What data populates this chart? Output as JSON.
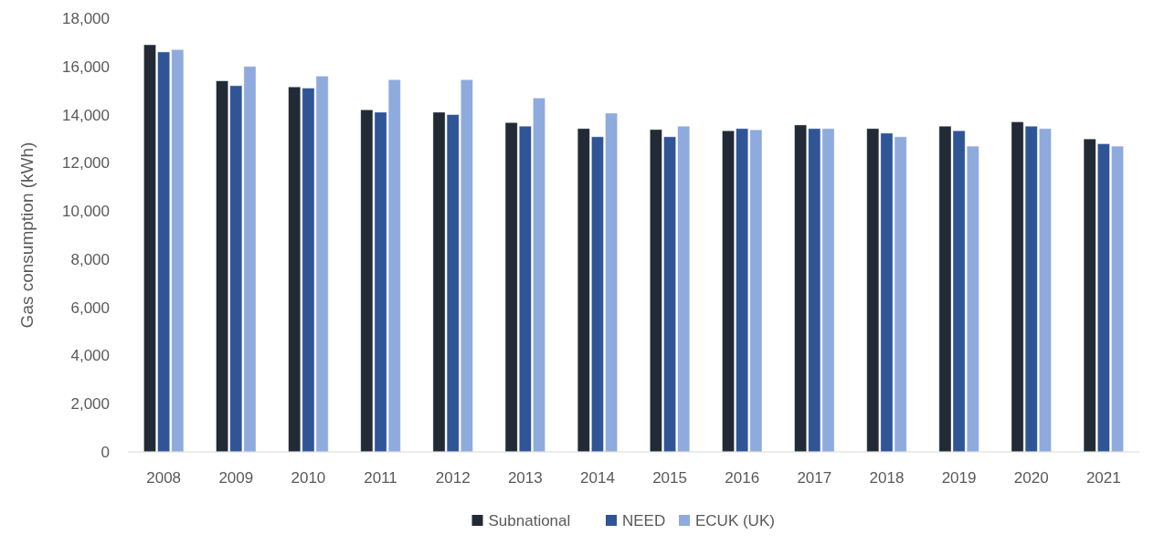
{
  "chart_data": {
    "type": "bar",
    "ylabel": "Gas consumption (kWh)",
    "categories": [
      "2008",
      "2009",
      "2010",
      "2011",
      "2012",
      "2013",
      "2014",
      "2015",
      "2016",
      "2017",
      "2018",
      "2019",
      "2020",
      "2021"
    ],
    "series": [
      {
        "name": "Subnational",
        "color": "#222a35",
        "values": [
          16900,
          15400,
          15150,
          14200,
          14100,
          13670,
          13420,
          13380,
          13330,
          13570,
          13420,
          13520,
          13700,
          12990
        ]
      },
      {
        "name": "NEED",
        "color": "#2f5597",
        "values": [
          16600,
          15200,
          15100,
          14100,
          14000,
          13520,
          13080,
          13080,
          13420,
          13420,
          13230,
          13330,
          13520,
          12790
        ]
      },
      {
        "name": "ECUK (UK)",
        "color": "#8faadc",
        "values": [
          16700,
          16000,
          15600,
          15450,
          15450,
          14690,
          14060,
          13520,
          13370,
          13420,
          13080,
          12690,
          13420,
          12690
        ]
      }
    ],
    "ylim": [
      0,
      18000
    ],
    "yticks": [
      0,
      {
        "value": 2000,
        "label": "2,000"
      },
      {
        "value": 4000,
        "label": "4,000"
      },
      {
        "value": 6000,
        "label": "6,000"
      },
      {
        "value": 8000,
        "label": "8,000"
      },
      {
        "value": 10000,
        "label": "10,000"
      },
      {
        "value": 12000,
        "label": "12,000"
      },
      {
        "value": 14000,
        "label": "14,000"
      },
      {
        "value": 16000,
        "label": "16,000"
      },
      {
        "value": 18000,
        "label": "18,000"
      }
    ],
    "grid": false,
    "legend": "bottom"
  }
}
